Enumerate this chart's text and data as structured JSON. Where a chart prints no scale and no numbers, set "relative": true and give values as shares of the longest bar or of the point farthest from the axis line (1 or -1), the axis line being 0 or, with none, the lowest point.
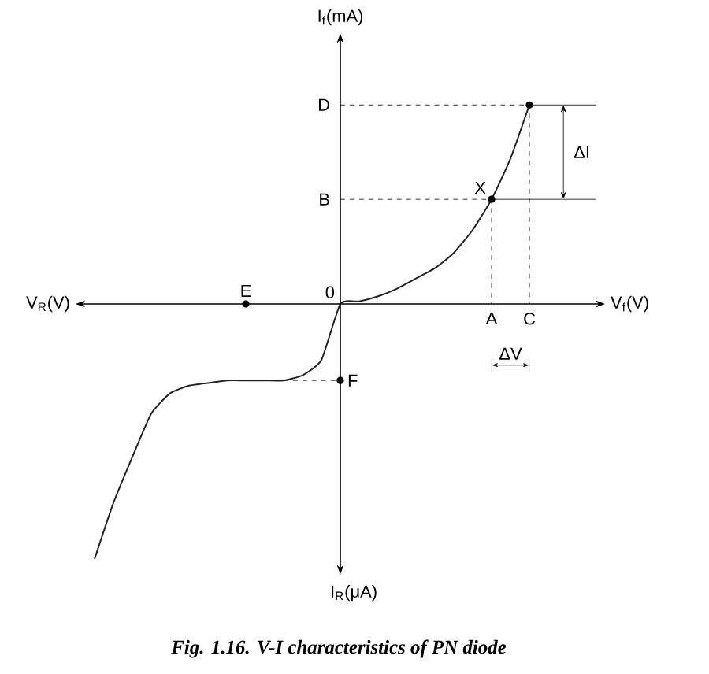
{
  "chart_data": {
    "type": "line",
    "relative": true,
    "color": "#222222",
    "marker": "none",
    "line_style": "solid",
    "title": "Fig. 1.16. V-I characteristics of PN diode",
    "xlabel": "V$_{f}$(V)",
    "ylabel": "I$_{f}$(mA)",
    "categories": [
      null,
      null,
      null,
      null,
      null,
      null,
      null,
      null,
      null,
      null,
      null,
      null,
      null,
      null,
      null,
      null,
      null,
      null,
      null,
      null,
      null,
      null,
      null,
      null,
      null,
      null,
      null,
      null,
      null
    ],
    "values": [
      null,
      -1.0,
      -0.78,
      -0.6,
      -0.43,
      -0.35,
      -0.32,
      -0.31,
      -0.3,
      -0.3,
      -0.3,
      -0.3,
      -0.28,
      -0.22,
      0,
      0.01,
      0.03,
      0.06,
      0.1,
      0.14,
      0.2,
      0.29,
      0.41,
      0.57,
      0.78,
      null,
      null,
      null,
      null
    ],
    "annotations": [
      "D",
      "B",
      "X",
      "A",
      "C",
      {
        "text": "E",
        "y": 0
      },
      "F",
      "0",
      "ΔI",
      "ΔV",
      "V$_{R}$(V)",
      "I$_{R}$(μA)"
    ]
  }
}
